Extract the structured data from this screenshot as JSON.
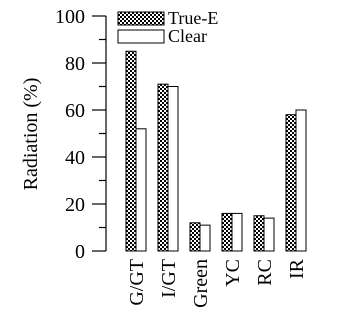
{
  "chart_data": {
    "type": "bar",
    "ylabel": "Radiation (%)",
    "ylim": [
      0,
      100
    ],
    "y_major_ticks": [
      0,
      20,
      40,
      60,
      80,
      100
    ],
    "y_minor_step": 10,
    "grid": false,
    "legend_position": "top-right",
    "categories": [
      "G/GT",
      "I/GT",
      "Green",
      "YC",
      "RC",
      "IR"
    ],
    "series": [
      {
        "name": "True-E",
        "values": [
          85,
          71,
          12,
          16,
          15,
          58
        ],
        "fill": "pattern-brick"
      },
      {
        "name": "Clear",
        "values": [
          52,
          70,
          11,
          16,
          14,
          60
        ],
        "fill": "#ffffff"
      }
    ]
  }
}
